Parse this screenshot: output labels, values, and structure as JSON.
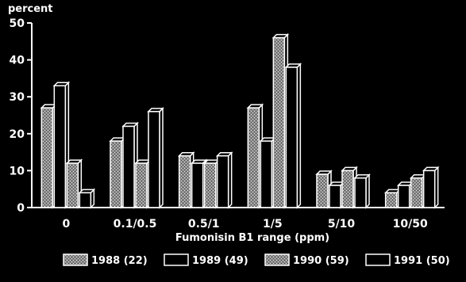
{
  "chart_data": {
    "type": "bar",
    "y_unit_label": "percent",
    "xlabel": "Fumonisin B1 range (ppm)",
    "ylim": [
      0,
      50
    ],
    "y_ticks": [
      0,
      10,
      20,
      30,
      40,
      50
    ],
    "categories": [
      "0",
      "0.1/0.5",
      "0.5/1",
      "1/5",
      "5/10",
      "10/50"
    ],
    "series": [
      {
        "name": "1988 (22)",
        "values": [
          27,
          18,
          14,
          27,
          9,
          4
        ],
        "pattern": "speckled"
      },
      {
        "name": "1989 (49)",
        "values": [
          33,
          22,
          12,
          18,
          6,
          6
        ],
        "pattern": "plain"
      },
      {
        "name": "1990 (59)",
        "values": [
          12,
          12,
          12,
          46,
          10,
          8
        ],
        "pattern": "speckled"
      },
      {
        "name": "1991 (50)",
        "values": [
          4,
          26,
          14,
          38,
          8,
          10
        ],
        "pattern": "plain"
      }
    ],
    "legend_position": "bottom",
    "grid": false,
    "colors": {
      "background": "#000000",
      "foreground": "#ffffff"
    }
  }
}
